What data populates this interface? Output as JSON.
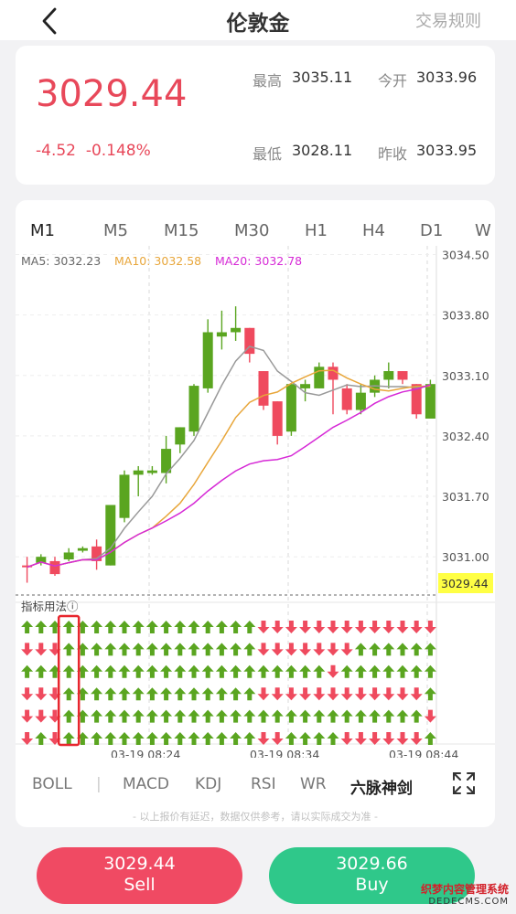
{
  "header": {
    "title": "伦敦金",
    "rules_link": "交易规则"
  },
  "quote": {
    "price": "3029.44",
    "change": "-4.52",
    "change_pct": "-0.148%",
    "high_label": "最高",
    "high": "3035.11",
    "open_label": "今开",
    "open": "3033.96",
    "low_label": "最低",
    "low": "3028.11",
    "prev_close_label": "昨收",
    "prev_close": "3033.95"
  },
  "timeframes": [
    "M1",
    "M5",
    "M15",
    "M30",
    "H1",
    "H4",
    "D1",
    "W"
  ],
  "active_timeframe": 0,
  "ma_legend": {
    "ma5": "MA5: 3032.23",
    "ma10": "MA10: 3032.58",
    "ma20": "MA20: 3032.78"
  },
  "colors": {
    "up": "#5aa520",
    "down": "#ef4a5e",
    "ma5": "#999999",
    "ma10": "#e8a63a",
    "ma20": "#d629d6",
    "current_price_bg": "#ffff44"
  },
  "chart_data": {
    "type": "candlestick",
    "y_ticks": [
      "3034.50",
      "3033.80",
      "3033.10",
      "3032.40",
      "3031.70",
      "3031.00"
    ],
    "current_price_tag": "3029.44",
    "x_ticks": [
      "03-19 08:24",
      "03-19 08:34",
      "03-19 08:44"
    ],
    "ylim": [
      3030.6,
      3034.6
    ],
    "candles": [
      [
        3030.9,
        3030.88,
        3031.0,
        3030.7
      ],
      [
        3030.93,
        3031.0,
        3031.03,
        3030.9
      ],
      [
        3030.95,
        3030.8,
        3031.0,
        3030.78
      ],
      [
        3030.97,
        3031.05,
        3031.1,
        3030.95
      ],
      [
        3031.07,
        3031.1,
        3031.12,
        3031.05
      ],
      [
        3031.12,
        3030.95,
        3031.2,
        3030.85
      ],
      [
        3030.9,
        3031.6,
        3031.6,
        3030.9
      ],
      [
        3031.45,
        3031.95,
        3032.0,
        3031.4
      ],
      [
        3031.95,
        3032.0,
        3032.05,
        3031.7
      ],
      [
        3031.97,
        3032.0,
        3032.05,
        3031.95
      ],
      [
        3031.97,
        3032.25,
        3032.4,
        3031.85
      ],
      [
        3032.3,
        3032.5,
        3032.5,
        3032.2
      ],
      [
        3032.45,
        3032.98,
        3033.0,
        3032.4
      ],
      [
        3032.95,
        3033.6,
        3033.75,
        3032.9
      ],
      [
        3033.55,
        3033.6,
        3033.85,
        3033.4
      ],
      [
        3033.6,
        3033.65,
        3033.9,
        3033.5
      ],
      [
        3033.65,
        3033.35,
        3033.65,
        3033.25
      ],
      [
        3033.15,
        3032.75,
        3033.15,
        3032.7
      ],
      [
        3032.8,
        3032.4,
        3032.8,
        3032.3
      ],
      [
        3032.45,
        3033.0,
        3033.0,
        3032.4
      ],
      [
        3032.95,
        3033.0,
        3033.05,
        3032.8
      ],
      [
        3032.95,
        3033.2,
        3033.25,
        3032.95
      ],
      [
        3033.2,
        3033.05,
        3033.25,
        3032.65
      ],
      [
        3032.95,
        3032.7,
        3033.0,
        3032.65
      ],
      [
        3032.7,
        3032.9,
        3033.0,
        3032.65
      ],
      [
        3032.9,
        3033.05,
        3033.1,
        3032.85
      ],
      [
        3033.05,
        3033.15,
        3033.25,
        3032.95
      ],
      [
        3033.15,
        3033.05,
        3033.15,
        3033.0
      ],
      [
        3033.0,
        3032.65,
        3033.0,
        3032.6
      ],
      [
        3032.6,
        3033.0,
        3033.05,
        3032.6
      ]
    ]
  },
  "indicator_panel": {
    "label": "指标用法",
    "info_icon": "ⓘ",
    "rows": [
      "UUUUUUUUUUUUUUUUUDDDDDDDDDDDDD",
      "DDDUUUUUUUUUUUUUUDDDDDDDUUUUUU",
      "UUUUUUUUUUUUUUUUUUUUUUDUUUUUUU",
      "DDDUUUUUUUUUUUUUUDDDDDDDDDDDDU",
      "DDDUUUUUUUUUUUUUUUUUUUUUUUUUUD",
      "DUDUUUUUUUUUUUUUUDDUUUUDDDDDDU"
    ],
    "highlight_column": 3
  },
  "indicator_tabs": [
    "BOLL",
    "MACD",
    "KDJ",
    "RSI",
    "WR",
    "六脉神剑"
  ],
  "active_indicator_tab": 5,
  "disclaimer": "- 以上报价有延迟，数据仅供参考，请以实际成交为准 -",
  "actions": {
    "sell_price": "3029.44",
    "sell_label": "Sell",
    "buy_price": "3029.66",
    "buy_label": "Buy"
  },
  "watermark": {
    "line1": "织梦内容管理系统",
    "line2": "DEDECMS.COM"
  }
}
